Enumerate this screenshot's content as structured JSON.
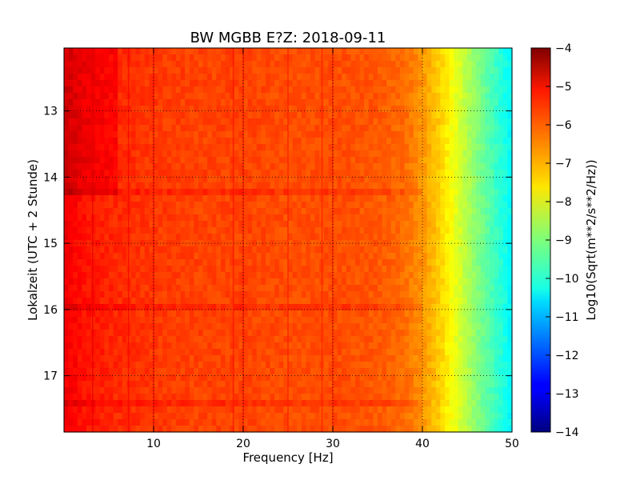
{
  "chart_data": {
    "type": "heatmap",
    "title": "BW MGBB E?Z: 2018-09-11",
    "xlabel": "Frequency [Hz]",
    "ylabel": "Lokalzeit (UTC + 2 Stunde)",
    "xlim": [
      0,
      50
    ],
    "ylim": [
      17.85,
      12.05
    ],
    "y_inverted": true,
    "x_ticks": [
      10,
      20,
      30,
      40,
      50
    ],
    "y_ticks": [
      13,
      14,
      15,
      16,
      17
    ],
    "grid": true,
    "grid_style": "dotted",
    "colormap": "jet",
    "colorbar": {
      "label": "Log10(Sqrt(m**2/s**2/Hz))",
      "range": [
        -14,
        -4
      ],
      "ticks": [
        -4,
        -5,
        -6,
        -7,
        -8,
        -9,
        -10,
        -11,
        -12,
        -13,
        -14
      ]
    },
    "frequency_profile": {
      "freq_hz": [
        0,
        2,
        5,
        10,
        15,
        20,
        25,
        30,
        35,
        38,
        40,
        42,
        44,
        46,
        48,
        50
      ],
      "log_psd": [
        -5.1,
        -5.4,
        -5.6,
        -5.8,
        -5.9,
        -5.9,
        -6.0,
        -6.0,
        -6.1,
        -6.3,
        -6.7,
        -7.3,
        -8.1,
        -8.9,
        -9.6,
        -10.3
      ]
    },
    "spectral_lines_hz": [
      3.2,
      7.2,
      10.0,
      18.9,
      20.0,
      25.0,
      28.8,
      30.0
    ],
    "time_events_hours": [
      14.2,
      16.0,
      17.4
    ]
  }
}
